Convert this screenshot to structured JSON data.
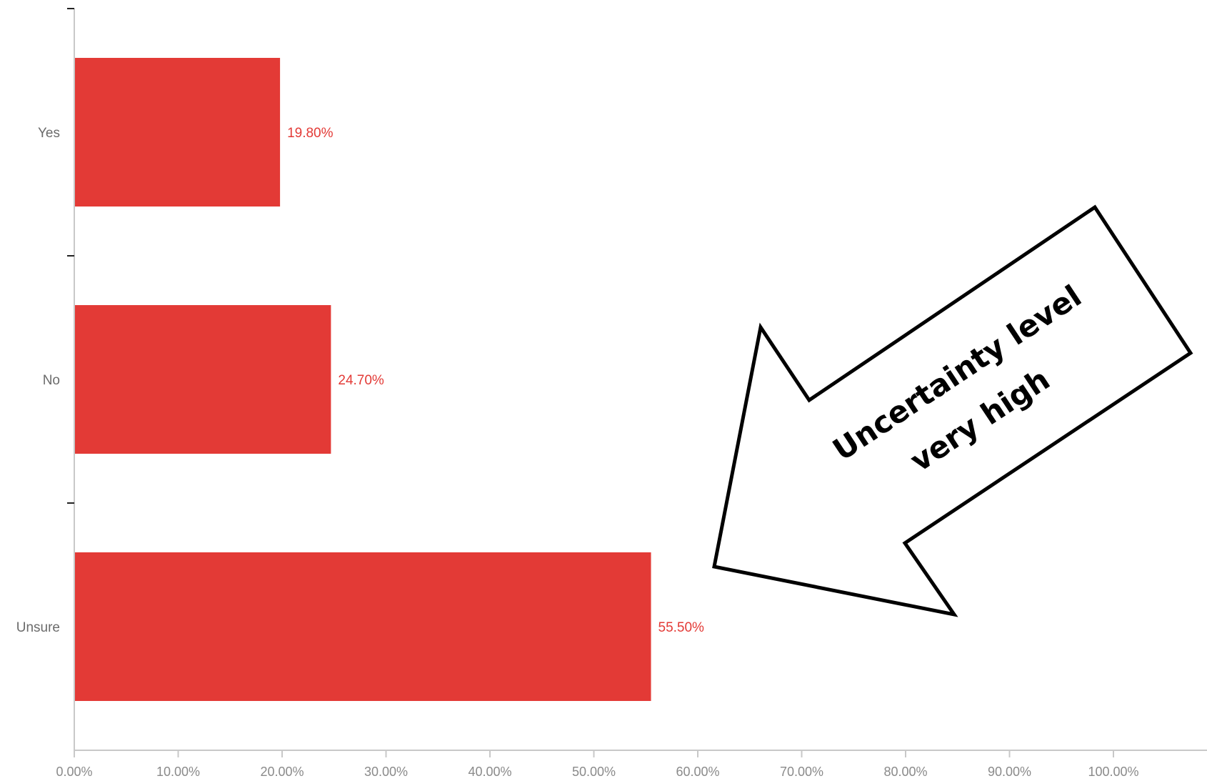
{
  "colors": {
    "bar": "#e33a36",
    "data_label": "#e33a36",
    "axis": "#c8c8c8"
  },
  "chart_data": {
    "type": "bar",
    "orientation": "horizontal",
    "categories": [
      "Yes",
      "No",
      "Unsure"
    ],
    "values": [
      19.8,
      24.7,
      55.5
    ],
    "value_labels": [
      "19.80%",
      "24.70%",
      "55.50%"
    ],
    "xlim": [
      0,
      100
    ],
    "x_ticks": [
      0,
      10,
      20,
      30,
      40,
      50,
      60,
      70,
      80,
      90,
      100
    ],
    "x_tick_labels": [
      "0.00%",
      "10.00%",
      "20.00%",
      "30.00%",
      "40.00%",
      "50.00%",
      "60.00%",
      "70.00%",
      "80.00%",
      "90.00%",
      "100.00%"
    ],
    "grid": false,
    "legend": "none",
    "annotation": {
      "lines": [
        "Uncertainty level",
        "very high"
      ],
      "shape": "arrow",
      "points_to": "Unsure"
    }
  }
}
